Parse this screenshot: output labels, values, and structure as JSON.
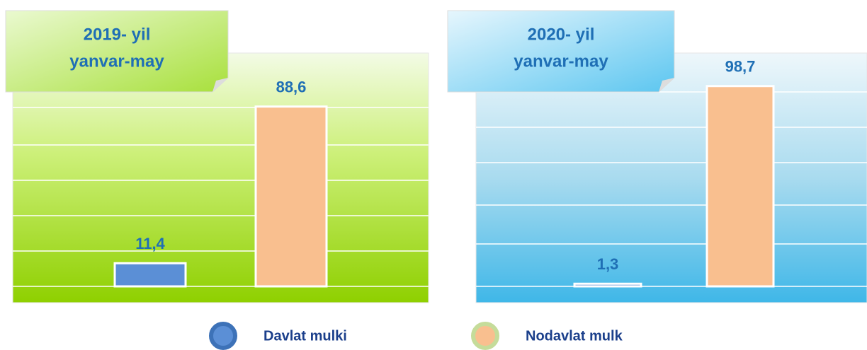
{
  "chart_data": [
    {
      "type": "bar",
      "title": [
        "2019- yil",
        "yanvar-may"
      ],
      "values": [
        11.4,
        88.6
      ],
      "value_labels": [
        "11,4",
        "88,6"
      ],
      "colors": [
        "#5b8fd6",
        "#f9bf8f"
      ],
      "ylim": [
        0,
        100
      ]
    },
    {
      "type": "bar",
      "title": [
        "2020- yil",
        "yanvar-may"
      ],
      "values": [
        1.3,
        98.7
      ],
      "value_labels": [
        "1,3",
        "98,7"
      ],
      "colors": [
        "#5b8fd6",
        "#f9bf8f"
      ],
      "ylim": [
        0,
        100
      ]
    }
  ],
  "legend": [
    {
      "name": "Davlat mulki",
      "color": "#5b8fd6"
    },
    {
      "name": "Nodavlat mulk",
      "color": "#f9bf8f"
    }
  ]
}
